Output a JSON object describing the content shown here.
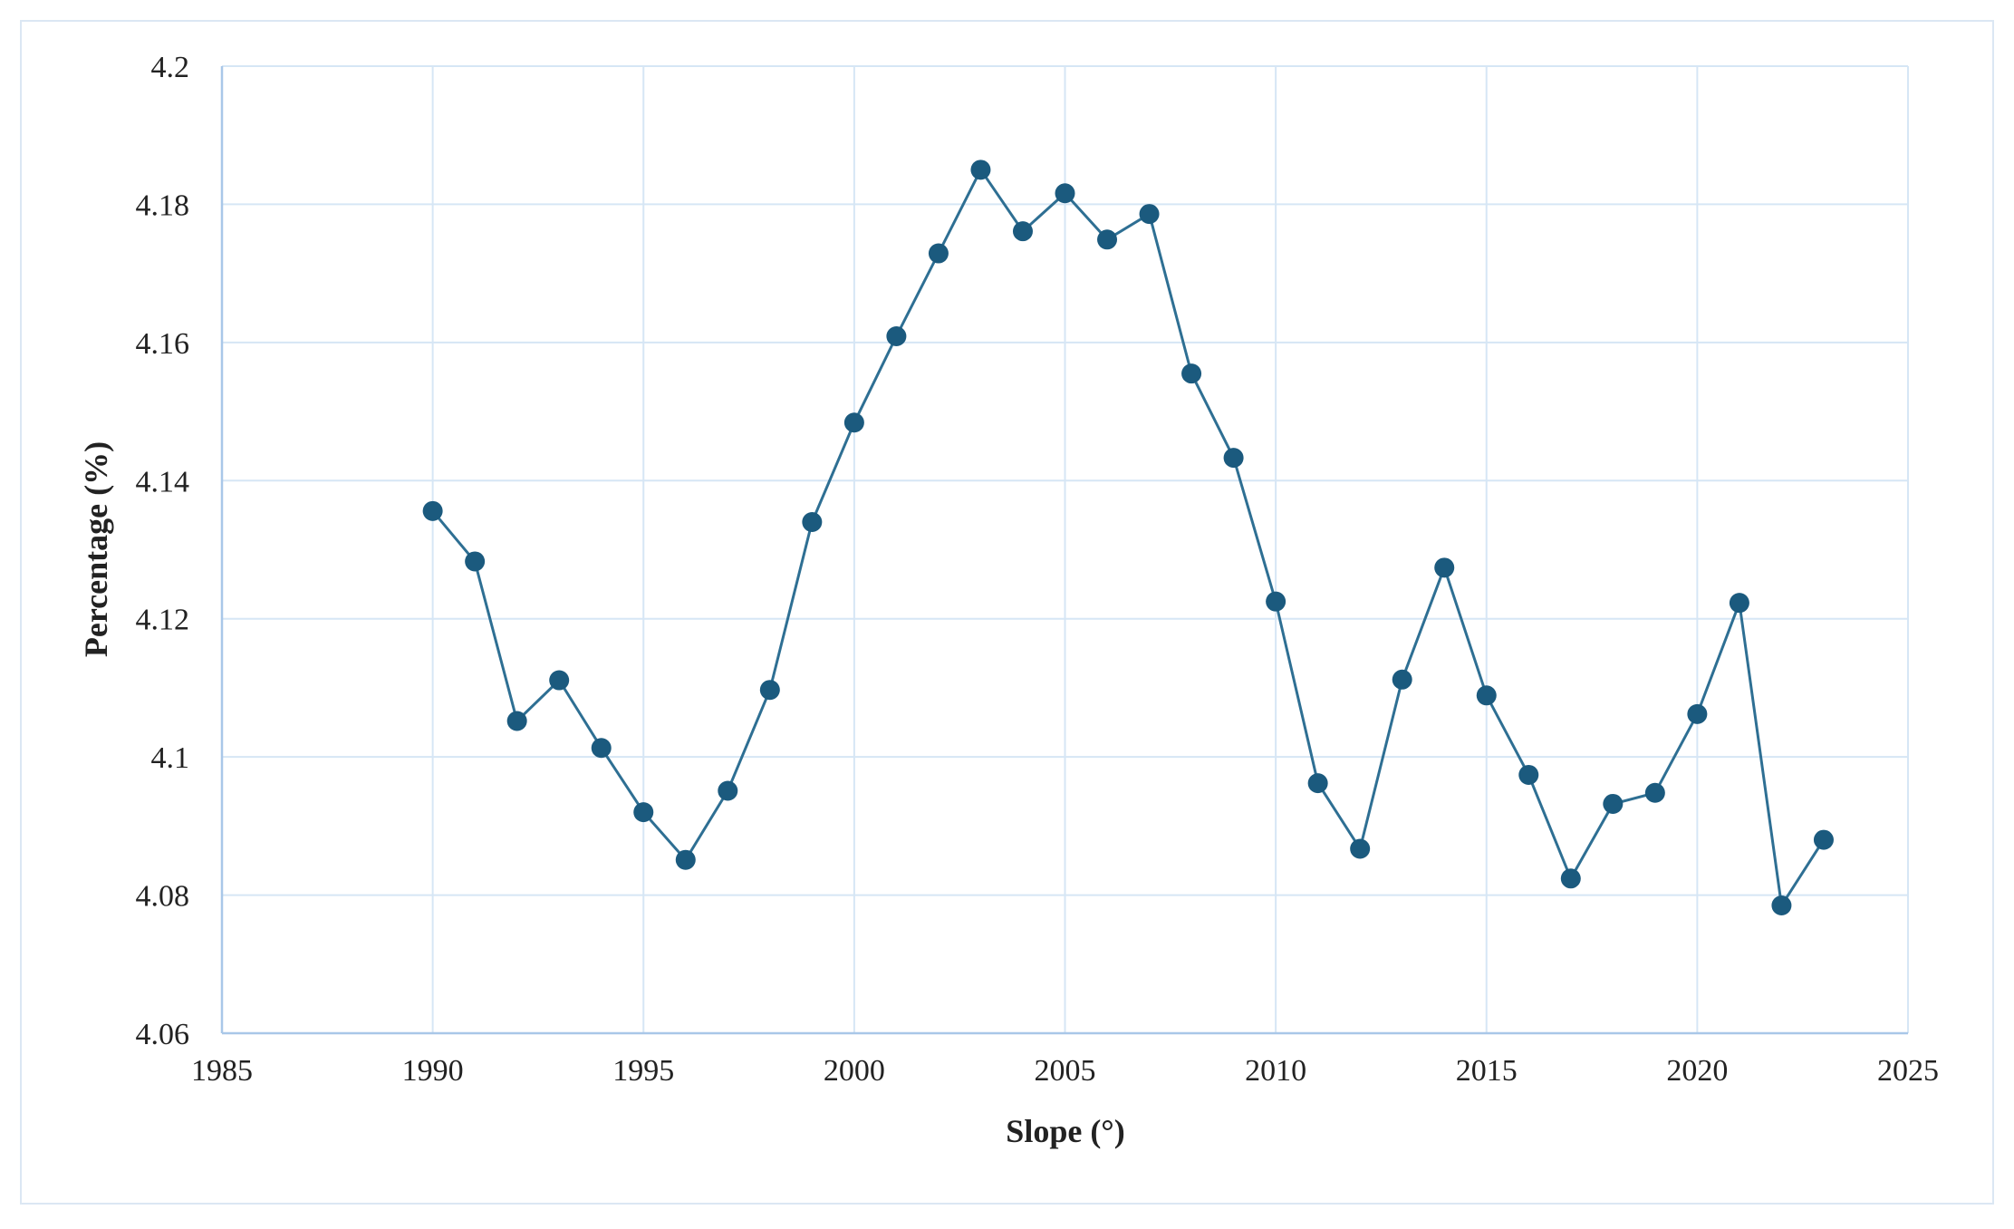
{
  "chart_data": {
    "type": "line",
    "title": "",
    "xlabel": "Slope (°)",
    "ylabel": "Percentage (%)",
    "xlim": [
      1985,
      2025
    ],
    "ylim": [
      4.06,
      4.2
    ],
    "xticks": [
      1985,
      1990,
      1995,
      2000,
      2005,
      2010,
      2015,
      2020,
      2025
    ],
    "yticks": [
      4.06,
      4.08,
      4.1,
      4.12,
      4.14,
      4.16,
      4.18,
      4.2
    ],
    "ytick_labels": [
      "4.06",
      "4.08",
      "4.1",
      "4.12",
      "4.14",
      "4.16",
      "4.18",
      "4.2"
    ],
    "grid": true,
    "legend": "none",
    "colors": {
      "line": "#2e6f93",
      "marker": "#1b5a7e",
      "grid": "#d6e6f5",
      "axis": "#a9c7e8"
    },
    "series": [
      {
        "x": [
          1990,
          1991,
          1992,
          1993,
          1994,
          1995,
          1996,
          1997,
          1998,
          1999,
          2000,
          2001,
          2002,
          2003,
          2004,
          2005,
          2006,
          2007,
          2008,
          2009,
          2010,
          2011,
          2012,
          2013,
          2014,
          2015,
          2016,
          2017,
          2018,
          2019,
          2020,
          2021,
          2022,
          2023
        ],
        "values": [
          4.1356,
          4.1283,
          4.1052,
          4.1111,
          4.1013,
          4.092,
          4.0851,
          4.0951,
          4.1097,
          4.134,
          4.1484,
          4.1609,
          4.1729,
          4.185,
          4.1761,
          4.1816,
          4.1749,
          4.1786,
          4.1555,
          4.1433,
          4.1225,
          4.0962,
          4.0867,
          4.1112,
          4.1274,
          4.1089,
          4.0974,
          4.0824,
          4.0932,
          4.0948,
          4.1062,
          4.1223,
          4.0785,
          4.088
        ]
      }
    ]
  }
}
